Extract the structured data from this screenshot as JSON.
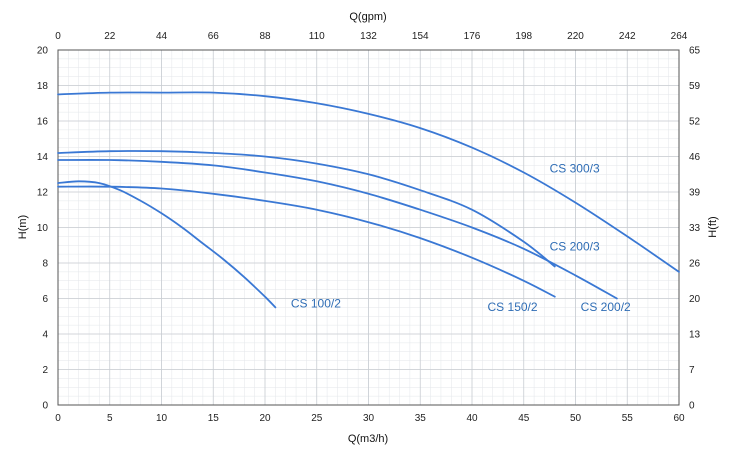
{
  "chart_data": {
    "type": "line",
    "xlabel": "Q(m3/h)",
    "ylabel": "H(m)",
    "x2label": "Q(gpm)",
    "y2label": "H(ft)",
    "xlim": [
      0,
      60
    ],
    "ylim": [
      0,
      20
    ],
    "x_ticks": [
      "0",
      "5",
      "10",
      "15",
      "20",
      "25",
      "30",
      "35",
      "40",
      "45",
      "50",
      "55",
      "60"
    ],
    "y_ticks": [
      "0",
      "2",
      "4",
      "6",
      "8",
      "10",
      "12",
      "14",
      "16",
      "18",
      "20"
    ],
    "x2_ticks": [
      "0",
      "22",
      "44",
      "66",
      "88",
      "110",
      "132",
      "154",
      "176",
      "198",
      "220",
      "242",
      "264"
    ],
    "y2_ticks": [
      "0",
      "7",
      "13",
      "20",
      "26",
      "33",
      "39",
      "46",
      "52",
      "59",
      "65"
    ],
    "grid": true,
    "line_color": "#3a78d4",
    "series": [
      {
        "name": "CS 100/2",
        "x": [
          0,
          2,
          4,
          6,
          8,
          10,
          12,
          14,
          16,
          18,
          20,
          21
        ],
        "y": [
          12.5,
          12.6,
          12.5,
          12.1,
          11.5,
          10.8,
          10.0,
          9.1,
          8.2,
          7.2,
          6.1,
          5.5
        ]
      },
      {
        "name": "CS 150/2",
        "x": [
          0,
          5,
          10,
          15,
          20,
          25,
          30,
          35,
          40,
          45,
          48
        ],
        "y": [
          12.3,
          12.3,
          12.2,
          11.9,
          11.5,
          11.0,
          10.3,
          9.4,
          8.3,
          7.0,
          6.1
        ]
      },
      {
        "name": "CS 200/2",
        "x": [
          0,
          5,
          10,
          15,
          20,
          25,
          30,
          35,
          40,
          45,
          50,
          54
        ],
        "y": [
          13.8,
          13.8,
          13.7,
          13.5,
          13.1,
          12.6,
          11.9,
          11.0,
          10.0,
          8.8,
          7.3,
          6.0
        ]
      },
      {
        "name": "CS 200/3",
        "x": [
          0,
          5,
          10,
          15,
          20,
          25,
          30,
          35,
          40,
          45,
          48
        ],
        "y": [
          14.2,
          14.3,
          14.3,
          14.2,
          14.0,
          13.6,
          13.0,
          12.1,
          11.0,
          9.2,
          7.8
        ]
      },
      {
        "name": "CS 300/3",
        "x": [
          0,
          5,
          10,
          15,
          20,
          25,
          30,
          35,
          40,
          45,
          50,
          55,
          60
        ],
        "y": [
          17.5,
          17.6,
          17.6,
          17.6,
          17.4,
          17.0,
          16.4,
          15.6,
          14.5,
          13.1,
          11.4,
          9.5,
          7.5
        ]
      }
    ],
    "labels": [
      {
        "text": "CS 100/2",
        "x": 22.5,
        "y": 5.5
      },
      {
        "text": "CS 150/2",
        "x": 41.5,
        "y": 5.3
      },
      {
        "text": "CS 200/2",
        "x": 50.5,
        "y": 5.3
      },
      {
        "text": "CS 200/3",
        "x": 47.5,
        "y": 8.7
      },
      {
        "text": "CS 300/3",
        "x": 47.5,
        "y": 13.1
      }
    ]
  }
}
